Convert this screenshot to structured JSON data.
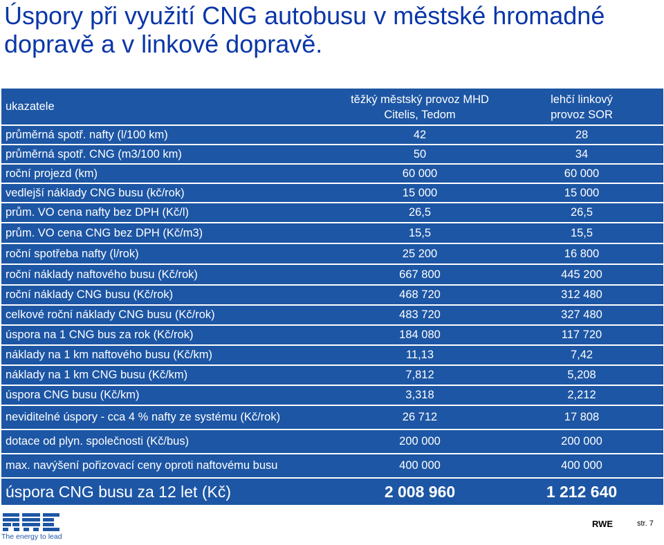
{
  "title": "Úspory při využití CNG autobusu v městské hromadné dopravě a v linkové dopravě.",
  "table": {
    "header": {
      "label": "ukazatele",
      "col1_line1": "těžký městský provoz MHD",
      "col1_line2": "Citelis, Tedom",
      "col2_line1": "lehčí linkový",
      "col2_line2": "provoz SOR"
    },
    "rows": [
      {
        "label": "průměrná spotř. nafty (l/100 km)",
        "v1": "42",
        "v2": "28"
      },
      {
        "label": "průměrná spotř. CNG (m3/100 km)",
        "v1": "50",
        "v2": "34"
      },
      {
        "label": "roční projezd (km)",
        "v1": "60 000",
        "v2": "60 000"
      },
      {
        "label": "vedlejší náklady CNG busu (kč/rok)",
        "v1": "15 000",
        "v2": "15 000"
      },
      {
        "label": "prům. VO cena nafty bez DPH (Kč/l)",
        "v1": "26,5",
        "v2": "26,5"
      },
      {
        "label": "prům. VO cena CNG bez DPH (Kč/m3)",
        "v1": "15,5",
        "v2": "15,5"
      },
      {
        "label": "roční spotřeba nafty (l/rok)",
        "v1": "25 200",
        "v2": "16 800"
      },
      {
        "label": "roční náklady naftového busu (Kč/rok)",
        "v1": "667 800",
        "v2": "445 200"
      },
      {
        "label": "roční náklady CNG busu (Kč/rok)",
        "v1": "468 720",
        "v2": "312 480"
      },
      {
        "label": "celkové roční náklady CNG busu (Kč/rok)",
        "v1": "483 720",
        "v2": "327 480"
      },
      {
        "label": "úspora na 1 CNG bus za rok (Kč/rok)",
        "v1": "184 080",
        "v2": "117 720"
      },
      {
        "label": "náklady na 1 km naftového busu (Kč/km)",
        "v1": "11,13",
        "v2": "7,42"
      },
      {
        "label": "náklady na 1 km CNG busu (Kč/km)",
        "v1": "7,812",
        "v2": "5,208"
      },
      {
        "label": "úspora CNG busu (Kč/km)",
        "v1": "3,318",
        "v2": "2,212"
      },
      {
        "label": "neviditelné úspory - cca 4 % nafty ze systému (Kč/rok)",
        "v1": "26 712",
        "v2": "17 808"
      },
      {
        "label": "dotace od plyn. společnosti (Kč/bus)",
        "v1": "200 000",
        "v2": "200 000"
      },
      {
        "label": "max. navýšení pořizovací ceny oproti naftovému busu",
        "v1": "400 000",
        "v2": "400 000"
      }
    ],
    "total": {
      "label": "úspora CNG busu za 12 let (Kč)",
      "v1": "2 008 960",
      "v2": "1 212 640"
    }
  },
  "footer": {
    "logo_text": "RWE",
    "tagline": "The energy to lead",
    "brand_small": "RWE",
    "page": "str. 7"
  },
  "colors": {
    "title": "#0a36a8",
    "row_bg": "#1d56a4",
    "row_text": "#ffffff",
    "logo": "#1d56a4"
  }
}
